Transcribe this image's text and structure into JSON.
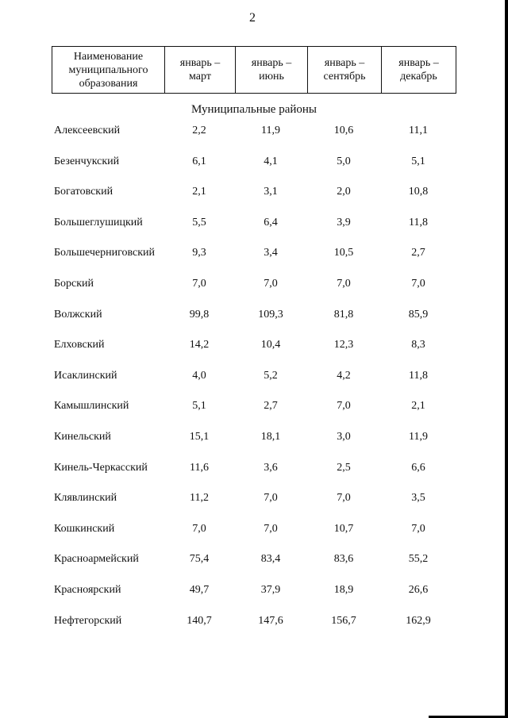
{
  "page": {
    "number": "2"
  },
  "table": {
    "headers": [
      "Наименование муниципального образования",
      "январь – март",
      "январь – июнь",
      "январь – сентябрь",
      "январь – декабрь"
    ],
    "header_lines": [
      [
        "Наименование",
        "муниципального",
        "образования"
      ],
      [
        "январь –",
        "март"
      ],
      [
        "январь –",
        "июнь"
      ],
      [
        "январь –",
        "сентябрь"
      ],
      [
        "январь –",
        "декабрь"
      ]
    ],
    "section_title": "Муниципальные районы",
    "rows": [
      {
        "name": "Алексеевский",
        "values": [
          "2,2",
          "11,9",
          "10,6",
          "11,1"
        ]
      },
      {
        "name": "Безенчукский",
        "values": [
          "6,1",
          "4,1",
          "5,0",
          "5,1"
        ]
      },
      {
        "name": "Богатовский",
        "values": [
          "2,1",
          "3,1",
          "2,0",
          "10,8"
        ]
      },
      {
        "name": "Большеглушицкий",
        "values": [
          "5,5",
          "6,4",
          "3,9",
          "11,8"
        ]
      },
      {
        "name": "Большечерниговский",
        "values": [
          "9,3",
          "3,4",
          "10,5",
          "2,7"
        ]
      },
      {
        "name": "Борский",
        "values": [
          "7,0",
          "7,0",
          "7,0",
          "7,0"
        ]
      },
      {
        "name": "Волжский",
        "values": [
          "99,8",
          "109,3",
          "81,8",
          "85,9"
        ]
      },
      {
        "name": "Елховский",
        "values": [
          "14,2",
          "10,4",
          "12,3",
          "8,3"
        ]
      },
      {
        "name": "Исаклинский",
        "values": [
          "4,0",
          "5,2",
          "4,2",
          "11,8"
        ]
      },
      {
        "name": "Камышлинский",
        "values": [
          "5,1",
          "2,7",
          "7,0",
          "2,1"
        ]
      },
      {
        "name": "Кинельский",
        "values": [
          "15,1",
          "18,1",
          "3,0",
          "11,9"
        ]
      },
      {
        "name": "Кинель-Черкасский",
        "values": [
          "11,6",
          "3,6",
          "2,5",
          "6,6"
        ]
      },
      {
        "name": "Клявлинский",
        "values": [
          "11,2",
          "7,0",
          "7,0",
          "3,5"
        ]
      },
      {
        "name": "Кошкинский",
        "values": [
          "7,0",
          "7,0",
          "10,7",
          "7,0"
        ]
      },
      {
        "name": "Красноармейский",
        "values": [
          "75,4",
          "83,4",
          "83,6",
          "55,2"
        ]
      },
      {
        "name": "Красноярский",
        "values": [
          "49,7",
          "37,9",
          "18,9",
          "26,6"
        ]
      },
      {
        "name": "Нефтегорский",
        "values": [
          "140,7",
          "147,6",
          "156,7",
          "162,9"
        ]
      }
    ]
  }
}
